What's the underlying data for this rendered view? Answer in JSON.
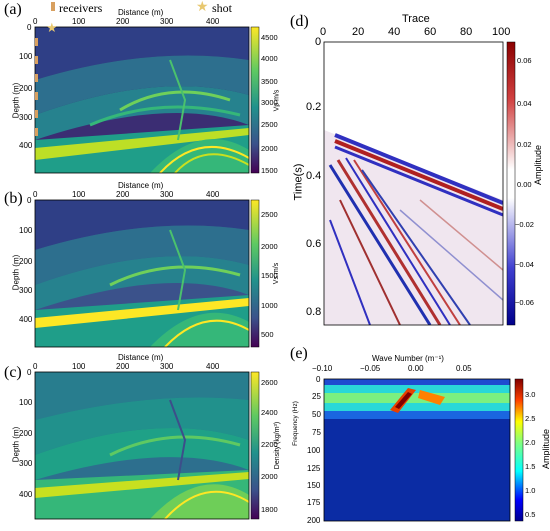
{
  "panel_labels": [
    "(a)",
    "(b)",
    "(c)",
    "(d)",
    "(e)"
  ],
  "legend": {
    "receivers": "receivers",
    "shot": "shot"
  },
  "model_axes": {
    "xlabel": "Distance (m)",
    "ylabel": "Depth (m)",
    "xticks": [
      "0",
      "100",
      "200",
      "300",
      "400"
    ],
    "yticks": [
      "0",
      "100",
      "200",
      "300",
      "400"
    ]
  },
  "colorbars": {
    "vp": {
      "label": "Vp m/s",
      "ticks": [
        "4500",
        "4000",
        "3500",
        "3000",
        "2500",
        "2000",
        "1500"
      ]
    },
    "vs": {
      "label": "Vs m/s",
      "ticks": [
        "2500",
        "2000",
        "1500",
        "1000",
        "500"
      ]
    },
    "density": {
      "label": "Density (kg/m³)",
      "ticks": [
        "2600",
        "2400",
        "2200",
        "2000",
        "1800"
      ]
    },
    "seismic": {
      "label": "Amplitude",
      "ticks": [
        "0.06",
        "0.04",
        "0.02",
        "0.00",
        "−0.02",
        "−0.04",
        "−0.06"
      ]
    },
    "fk": {
      "label": "Amplitude",
      "ticks": [
        "3.0",
        "2.5",
        "2.0",
        "1.5",
        "1.0",
        "0.5"
      ]
    }
  },
  "seismic_axes": {
    "xlabel": "Trace",
    "ylabel": "Time(s)",
    "xticks": [
      "0",
      "20",
      "40",
      "60",
      "80",
      "100"
    ],
    "yticks": [
      "0",
      "0.2",
      "0.4",
      "0.6",
      "0.8"
    ]
  },
  "fk_axes": {
    "xlabel": "Wave Number (m⁻¹)",
    "ylabel": "Frequency (Hz)",
    "xticks": [
      "−0.10",
      "−0.05",
      "0.00",
      "0.05"
    ],
    "yticks": [
      "0",
      "25",
      "50",
      "75",
      "100",
      "125",
      "150",
      "175",
      "200"
    ]
  }
}
